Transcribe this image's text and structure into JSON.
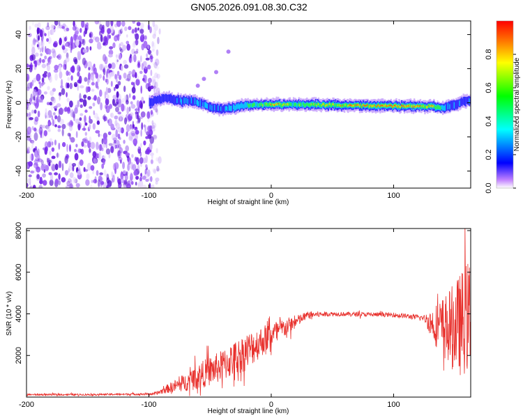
{
  "title": "GN05.2026.091.08.30.C32",
  "chart_data": [
    {
      "type": "heatmap",
      "name": "spectrogram",
      "xlabel": "Height of straight line (km)",
      "ylabel": "Frequency (Hz)",
      "xlim": [
        -200,
        163
      ],
      "ylim": [
        -50,
        48
      ],
      "xticks": [
        -200,
        -100,
        0,
        100
      ],
      "yticks": [
        -40,
        -20,
        0,
        20,
        40
      ],
      "noise_region_x": [
        -200,
        -97
      ],
      "ridge": [
        {
          "x": -100,
          "y": 0
        },
        {
          "x": -92,
          "y": 2
        },
        {
          "x": -85,
          "y": 3
        },
        {
          "x": -75,
          "y": 1
        },
        {
          "x": -65,
          "y": 1
        },
        {
          "x": -55,
          "y": -1
        },
        {
          "x": -48,
          "y": -3
        },
        {
          "x": -40,
          "y": -4
        },
        {
          "x": -33,
          "y": -3
        },
        {
          "x": -25,
          "y": -2
        },
        {
          "x": -15,
          "y": -1
        },
        {
          "x": -5,
          "y": -1
        },
        {
          "x": 0,
          "y": -1
        },
        {
          "x": 10,
          "y": -1
        },
        {
          "x": 30,
          "y": -1
        },
        {
          "x": 60,
          "y": -1.5
        },
        {
          "x": 100,
          "y": -2
        },
        {
          "x": 130,
          "y": -2
        },
        {
          "x": 140,
          "y": -3
        },
        {
          "x": 150,
          "y": -1
        },
        {
          "x": 158,
          "y": 1
        },
        {
          "x": 163,
          "y": 1
        }
      ],
      "ridge_intensity": [
        {
          "x": -100,
          "v": 0.35
        },
        {
          "x": -60,
          "v": 0.45
        },
        {
          "x": -40,
          "v": 0.4
        },
        {
          "x": -10,
          "v": 0.7
        },
        {
          "x": 0,
          "v": 0.85
        },
        {
          "x": 20,
          "v": 0.7
        },
        {
          "x": 60,
          "v": 0.85
        },
        {
          "x": 100,
          "v": 0.95
        },
        {
          "x": 130,
          "v": 0.85
        },
        {
          "x": 145,
          "v": 0.45
        },
        {
          "x": 163,
          "v": 0.4
        }
      ],
      "colorbar": {
        "label": "Normalized spectral amplitude",
        "range": [
          0,
          1
        ],
        "ticks": [
          "0.0",
          "0.2",
          "0.4",
          "0.6",
          "0.8"
        ]
      }
    },
    {
      "type": "line",
      "name": "snr",
      "xlabel": "Height of straight line (km)",
      "ylabel": "SNR (10 * v/v)",
      "xlim": [
        -200,
        163
      ],
      "ylim": [
        0,
        8100
      ],
      "xticks": [
        -200,
        -100,
        0,
        100
      ],
      "yticks": [
        2000,
        4000,
        6000,
        8000
      ],
      "color": "#e8302c",
      "envelope": [
        {
          "x": -200,
          "mean": 120,
          "amp": 60
        },
        {
          "x": -150,
          "mean": 120,
          "amp": 60
        },
        {
          "x": -95,
          "mean": 150,
          "amp": 80
        },
        {
          "x": -85,
          "mean": 400,
          "amp": 300
        },
        {
          "x": -70,
          "mean": 700,
          "amp": 600
        },
        {
          "x": -60,
          "mean": 1000,
          "amp": 900
        },
        {
          "x": -40,
          "mean": 1500,
          "amp": 1100
        },
        {
          "x": -20,
          "mean": 2200,
          "amp": 1300
        },
        {
          "x": 0,
          "mean": 3000,
          "amp": 900
        },
        {
          "x": 20,
          "mean": 3600,
          "amp": 450
        },
        {
          "x": 30,
          "mean": 3950,
          "amp": 250
        },
        {
          "x": 50,
          "mean": 4000,
          "amp": 150
        },
        {
          "x": 100,
          "mean": 3950,
          "amp": 150
        },
        {
          "x": 125,
          "mean": 3800,
          "amp": 200
        },
        {
          "x": 132,
          "mean": 3500,
          "amp": 1200
        },
        {
          "x": 145,
          "mean": 3300,
          "amp": 2600
        },
        {
          "x": 155,
          "mean": 3500,
          "amp": 3600
        },
        {
          "x": 163,
          "mean": 4000,
          "amp": 4000
        }
      ]
    }
  ]
}
